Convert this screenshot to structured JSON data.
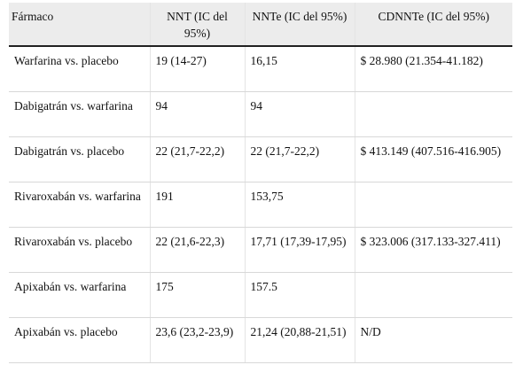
{
  "table": {
    "headers": [
      "Fármaco",
      "NNT (IC del 95%)",
      "NNTe (IC del 95%)",
      "CDNNTe (IC del 95%)"
    ],
    "rows": [
      [
        "Warfarina vs. placebo",
        "19 (14-27)",
        "16,15",
        "$ 28.980 (21.354-41.182)"
      ],
      [
        "Dabigatrán vs. warfarina",
        "94",
        "94",
        ""
      ],
      [
        "Dabigatrán vs. placebo",
        "22 (21,7-22,2)",
        "22 (21,7-22,2)",
        "$ 413.149 (407.516-416.905)"
      ],
      [
        "Rivaroxabán vs. warfarina",
        "191",
        "153,75",
        ""
      ],
      [
        "Rivaroxabán vs. placebo",
        "22 (21,6-22,3)",
        "17,71 (17,39-17,95)",
        "$ 323.006 (317.133-327.411)"
      ],
      [
        "Apixabán vs. warfarina",
        "175",
        "157.5",
        ""
      ],
      [
        "Apixabán vs. placebo",
        "23,6 (23,2-23,9)",
        "21,24 (20,88-21,51)",
        "N/D"
      ]
    ]
  }
}
